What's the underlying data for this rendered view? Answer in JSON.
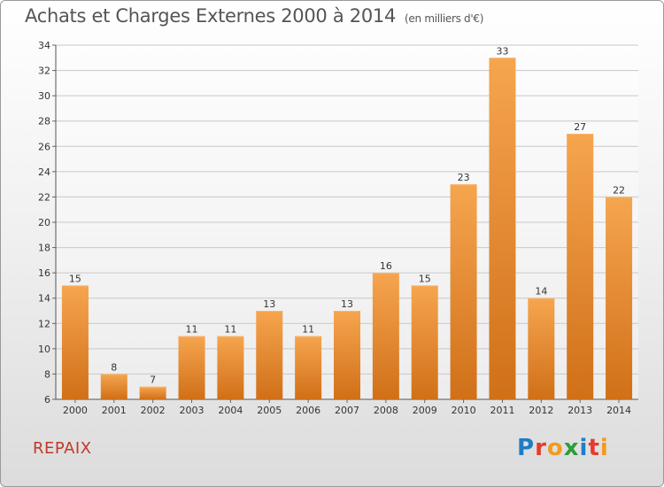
{
  "header": {
    "title": "Achats et Charges Externes 2000 à 2014",
    "unit": "(en milliers d'€)"
  },
  "footer": {
    "commune": "REPAIX",
    "logo_letters": [
      "P",
      "r",
      "o",
      "x",
      "i",
      "t",
      "i"
    ]
  },
  "colors": {
    "bar_light": "#f6a54f",
    "bar_dark": "#d07018",
    "logo": [
      "#1f7dc4",
      "#e53b2c",
      "#f39a1f",
      "#2e9e3a",
      "#1f7dc4",
      "#e53b2c",
      "#f39a1f"
    ]
  },
  "chart_data": {
    "type": "bar",
    "title": "Achats et Charges Externes 2000 à 2014",
    "subtitle": "(en milliers d'€)",
    "categories": [
      "2000",
      "2001",
      "2002",
      "2003",
      "2004",
      "2005",
      "2006",
      "2007",
      "2008",
      "2009",
      "2010",
      "2011",
      "2012",
      "2013",
      "2014"
    ],
    "values": [
      15,
      8,
      7,
      11,
      11,
      13,
      11,
      13,
      16,
      15,
      23,
      33,
      14,
      27,
      22
    ],
    "ylim": [
      6,
      34
    ],
    "yticks": [
      6,
      8,
      10,
      12,
      14,
      16,
      18,
      20,
      22,
      24,
      26,
      28,
      30,
      32,
      34
    ],
    "grid": true,
    "data_labels": true
  }
}
